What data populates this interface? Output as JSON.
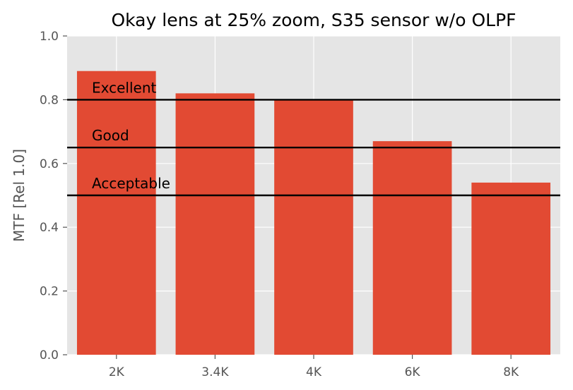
{
  "chart_data": {
    "type": "bar",
    "title": "Okay lens at 25% zoom, S35 sensor w/o OLPF",
    "xlabel": "",
    "ylabel": "MTF [Rel 1.0]",
    "categories": [
      "2K",
      "3.4K",
      "4K",
      "6K",
      "8K"
    ],
    "values": [
      0.89,
      0.82,
      0.8,
      0.67,
      0.54
    ],
    "ylim": [
      0.0,
      1.0
    ],
    "yticks": [
      "0.0",
      "0.2",
      "0.4",
      "0.6",
      "0.8",
      "1.0"
    ],
    "grid": true,
    "reference_lines": [
      {
        "label": "Excellent",
        "value": 0.8
      },
      {
        "label": "Good",
        "value": 0.65
      },
      {
        "label": "Acceptable",
        "value": 0.5
      }
    ],
    "colors": {
      "bar": "#e24a33",
      "plot_background": "#e5e5e5",
      "grid": "#ffffff",
      "reference_line": "#000000"
    }
  }
}
